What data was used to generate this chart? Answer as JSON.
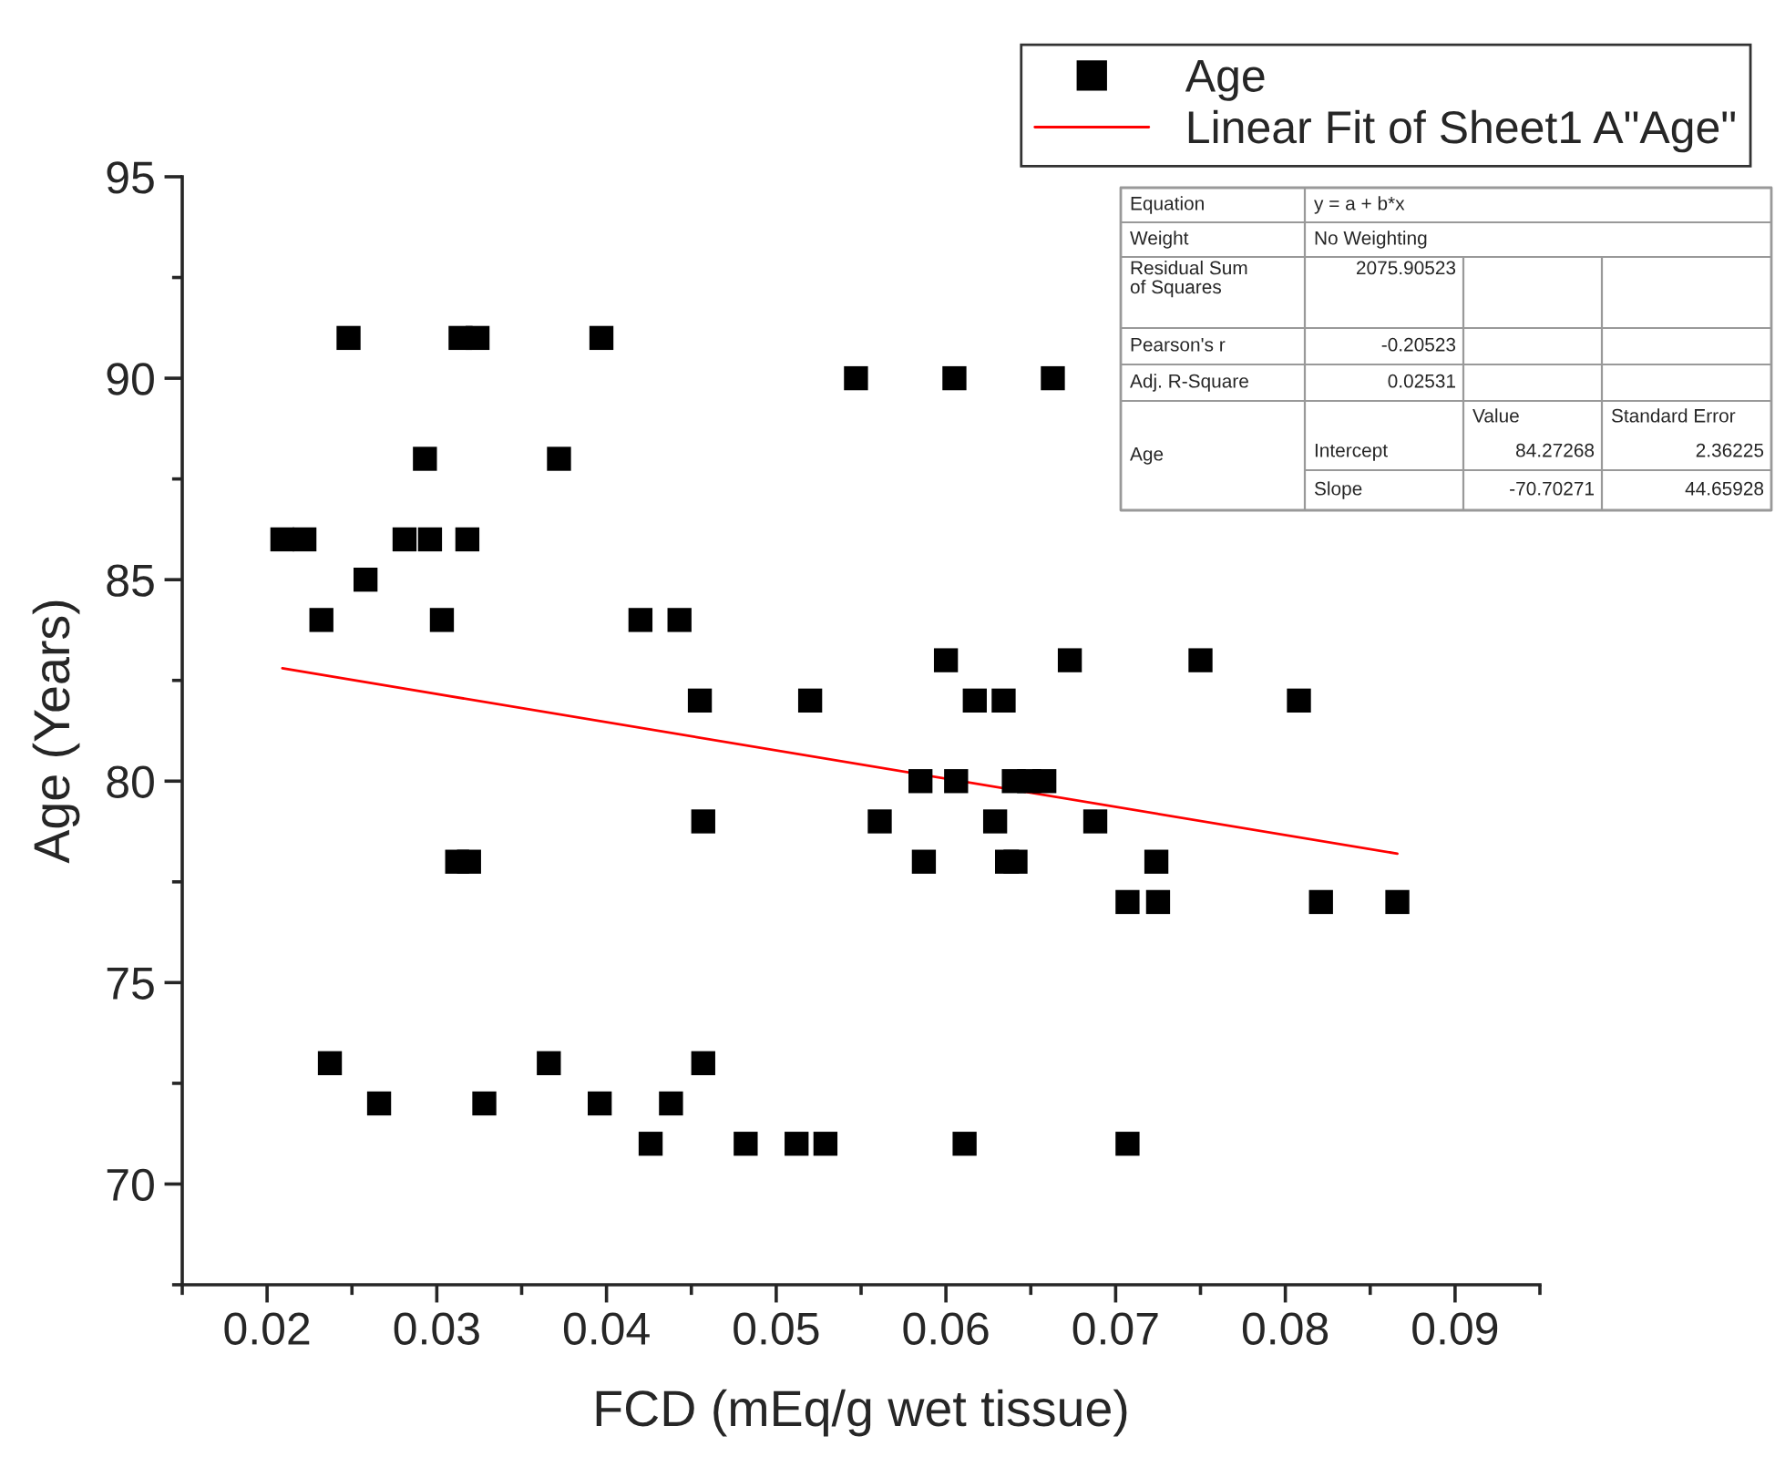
{
  "chart_data": {
    "type": "scatter",
    "xlabel": "FCD (mEq/g wet tissue)",
    "ylabel": "Age (Years)",
    "xlim": [
      0.015,
      0.095
    ],
    "xticks": [
      {
        "value": 0.02,
        "label": "0.02"
      },
      {
        "value": 0.03,
        "label": "0.03"
      },
      {
        "value": 0.04,
        "label": "0.04"
      },
      {
        "value": 0.05,
        "label": "0.05"
      },
      {
        "value": 0.06,
        "label": "0.06"
      },
      {
        "value": 0.07,
        "label": "0.07"
      },
      {
        "value": 0.08,
        "label": "0.08"
      },
      {
        "value": 0.09,
        "label": "0.09"
      }
    ],
    "ylim": [
      67.5,
      95
    ],
    "yticks": [
      70,
      75,
      80,
      85,
      90,
      95
    ],
    "grid": false,
    "legend": "top right",
    "series": [
      {
        "name": "Age",
        "marker": "square",
        "color": "#000000",
        "x": [
          0.0248,
          0.0314,
          0.0324,
          0.0397,
          0.0547,
          0.0293,
          0.0372,
          0.0209,
          0.0222,
          0.0281,
          0.0296,
          0.0318,
          0.0258,
          0.0232,
          0.0303,
          0.042,
          0.0443,
          0.0455,
          0.052,
          0.0457,
          0.0312,
          0.0319,
          0.0237,
          0.0366,
          0.0457,
          0.0266,
          0.0328,
          0.0396,
          0.0438,
          0.0426,
          0.0482,
          0.0512,
          0.0605,
          0.0663,
          0.06,
          0.0673,
          0.075,
          0.0617,
          0.0634,
          0.0808,
          0.0585,
          0.0606,
          0.064,
          0.0649,
          0.0658,
          0.0561,
          0.0629,
          0.0688,
          0.0587,
          0.0636,
          0.0641,
          0.0724,
          0.0707,
          0.0725,
          0.0821,
          0.0866,
          0.0529,
          0.0611,
          0.0707
        ],
        "values": [
          91,
          91,
          91,
          91,
          90,
          88,
          88,
          86,
          86,
          86,
          86,
          86,
          85,
          84,
          84,
          84,
          84,
          82,
          82,
          79,
          78,
          78,
          73,
          73,
          73,
          72,
          72,
          72,
          72,
          71,
          71,
          71,
          90,
          90,
          83,
          83,
          83,
          82,
          82,
          82,
          80,
          80,
          80,
          80,
          80,
          79,
          79,
          79,
          78,
          78,
          78,
          78,
          77,
          77,
          77,
          77,
          71,
          71,
          71
        ]
      },
      {
        "name": "Linear Fit of Sheet1 A\"Age\"",
        "type": "line",
        "marker": "none",
        "color": "#ff0000",
        "x": [
          0.0209,
          0.0866
        ],
        "values": [
          82.8,
          78.2
        ]
      }
    ],
    "annotations": [
      "Equation",
      "y = a + b*x",
      "Weight",
      "No Weighting",
      "Residual Sum\nof Squares",
      "2075.90523",
      "Pearson's r",
      "-0.20523",
      "Adj. R-Square",
      "0.02531",
      "Age",
      "Value",
      "Standard Error",
      "Intercept",
      "84.27268",
      "2.36225",
      "Slope",
      "-70.70271",
      "44.65928"
    ]
  }
}
